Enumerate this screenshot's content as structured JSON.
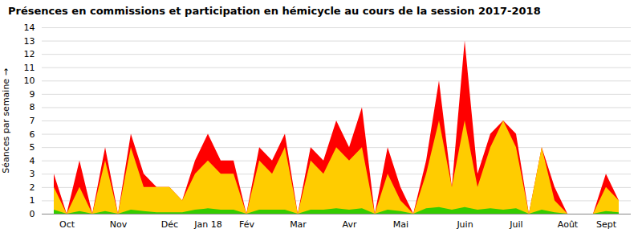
{
  "chart_data": {
    "type": "area",
    "title": "Présences en commissions et participation en hémicycle au cours de la session 2017-2018",
    "ylabel": "Séances par semaine",
    "categories": [
      null,
      "Oct",
      null,
      null,
      null,
      "Nov",
      null,
      null,
      null,
      "Déc",
      null,
      null,
      "Jan 18",
      null,
      null,
      "Fév",
      null,
      null,
      null,
      "Mar",
      null,
      null,
      null,
      "Avr",
      null,
      null,
      null,
      "Mai",
      null,
      null,
      null,
      null,
      "Juin",
      null,
      null,
      null,
      "Juil",
      null,
      null,
      null,
      "Août",
      null,
      null,
      "Sept",
      null
    ],
    "series": [
      {
        "color": "#ff0000",
        "values": [
          3,
          0,
          4,
          0,
          5,
          0,
          6,
          3,
          2,
          2,
          1,
          4,
          6,
          4,
          4,
          0,
          5,
          4,
          6,
          0,
          5,
          4,
          7,
          5,
          8,
          0,
          5,
          2,
          0,
          4,
          10,
          2,
          13,
          3,
          6,
          7,
          6,
          0,
          5,
          2,
          0,
          0,
          0,
          3,
          1
        ]
      },
      {
        "color": "#ffcc00",
        "values": [
          2,
          0,
          2,
          0,
          4,
          0,
          5,
          2,
          2,
          2,
          1,
          3,
          4,
          3,
          3,
          0,
          4,
          3,
          5,
          0,
          4,
          3,
          5,
          4,
          5,
          0,
          3,
          1,
          0,
          3,
          7,
          2,
          7,
          2,
          5,
          7,
          5,
          0,
          5,
          1,
          0,
          0,
          0,
          2,
          1
        ]
      },
      {
        "color": "#33cc00",
        "values": [
          0.3,
          0,
          0.2,
          0,
          0.2,
          0,
          0.3,
          0.2,
          0.1,
          0.1,
          0.1,
          0.3,
          0.4,
          0.3,
          0.3,
          0,
          0.3,
          0.3,
          0.3,
          0,
          0.3,
          0.3,
          0.4,
          0.3,
          0.4,
          0,
          0.3,
          0.2,
          0,
          0.4,
          0.5,
          0.3,
          0.5,
          0.3,
          0.4,
          0.3,
          0.4,
          0,
          0.3,
          0.1,
          0,
          0,
          0,
          0.2,
          0.1
        ]
      }
    ],
    "stacked": false,
    "ylim": [
      0,
      14
    ],
    "yticks": [
      0,
      1,
      2,
      3,
      4,
      5,
      6,
      7,
      8,
      9,
      10,
      11,
      12,
      13,
      14
    ],
    "grid": true
  }
}
